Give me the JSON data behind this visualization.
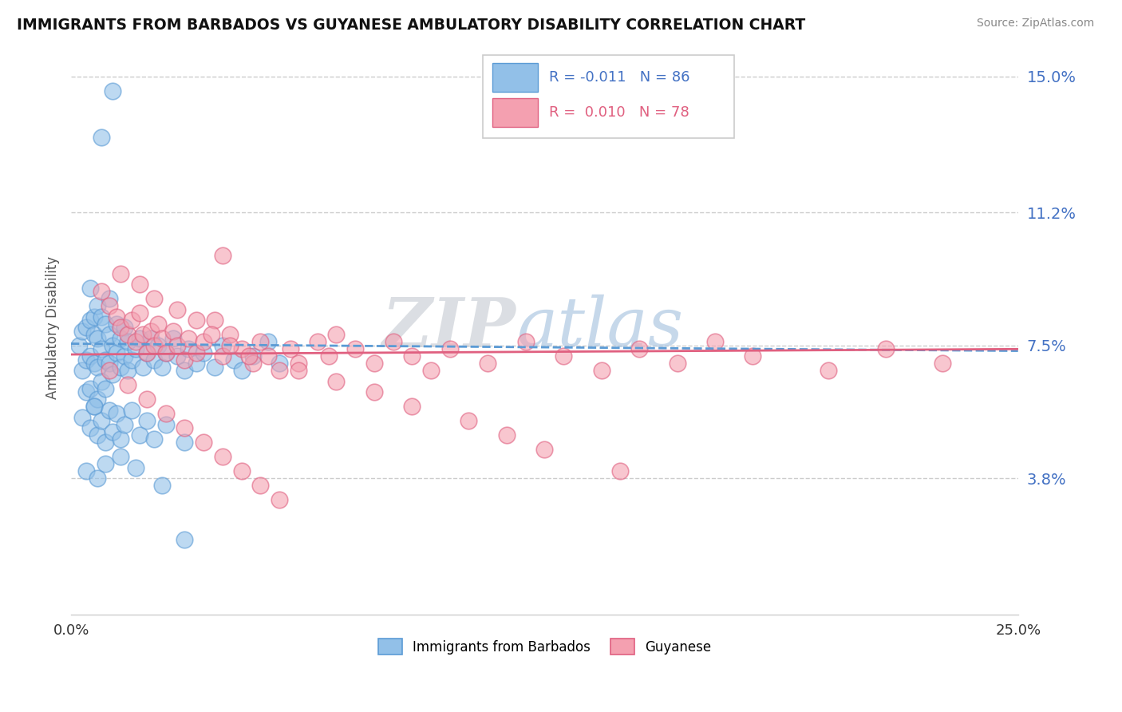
{
  "title": "IMMIGRANTS FROM BARBADOS VS GUYANESE AMBULATORY DISABILITY CORRELATION CHART",
  "source": "Source: ZipAtlas.com",
  "ylabel": "Ambulatory Disability",
  "xlim": [
    0.0,
    0.25
  ],
  "ylim": [
    0.0,
    0.16
  ],
  "yticks": [
    0.038,
    0.075,
    0.112,
    0.15
  ],
  "ytick_labels": [
    "3.8%",
    "7.5%",
    "11.2%",
    "15.0%"
  ],
  "xticks": [
    0.0,
    0.25
  ],
  "xtick_labels": [
    "0.0%",
    "25.0%"
  ],
  "blue_color": "#92c0e8",
  "pink_color": "#f4a0b0",
  "blue_line_color": "#5b9bd5",
  "pink_line_color": "#e06080",
  "grid_color": "#cccccc",
  "watermark": "ZIPAtlas",
  "watermark_color": "#c8d4e8",
  "blue_x": [
    0.002,
    0.003,
    0.003,
    0.004,
    0.004,
    0.004,
    0.005,
    0.005,
    0.005,
    0.005,
    0.006,
    0.006,
    0.006,
    0.006,
    0.007,
    0.007,
    0.007,
    0.007,
    0.008,
    0.008,
    0.008,
    0.009,
    0.009,
    0.009,
    0.01,
    0.01,
    0.01,
    0.011,
    0.011,
    0.012,
    0.012,
    0.013,
    0.013,
    0.014,
    0.014,
    0.015,
    0.015,
    0.016,
    0.017,
    0.018,
    0.019,
    0.02,
    0.021,
    0.022,
    0.023,
    0.024,
    0.025,
    0.027,
    0.028,
    0.03,
    0.031,
    0.033,
    0.035,
    0.038,
    0.04,
    0.043,
    0.045,
    0.048,
    0.052,
    0.055,
    0.003,
    0.005,
    0.006,
    0.007,
    0.008,
    0.009,
    0.01,
    0.011,
    0.012,
    0.013,
    0.014,
    0.016,
    0.018,
    0.02,
    0.022,
    0.025,
    0.03,
    0.004,
    0.007,
    0.009,
    0.013,
    0.017,
    0.024,
    0.011,
    0.008,
    0.03
  ],
  "blue_y": [
    0.075,
    0.068,
    0.079,
    0.071,
    0.08,
    0.062,
    0.072,
    0.082,
    0.063,
    0.091,
    0.07,
    0.078,
    0.058,
    0.083,
    0.069,
    0.077,
    0.06,
    0.086,
    0.074,
    0.065,
    0.083,
    0.071,
    0.081,
    0.063,
    0.07,
    0.078,
    0.088,
    0.075,
    0.067,
    0.073,
    0.081,
    0.069,
    0.077,
    0.072,
    0.08,
    0.068,
    0.076,
    0.071,
    0.074,
    0.077,
    0.069,
    0.073,
    0.077,
    0.071,
    0.075,
    0.069,
    0.073,
    0.077,
    0.072,
    0.068,
    0.074,
    0.07,
    0.073,
    0.069,
    0.075,
    0.071,
    0.068,
    0.072,
    0.076,
    0.07,
    0.055,
    0.052,
    0.058,
    0.05,
    0.054,
    0.048,
    0.057,
    0.051,
    0.056,
    0.049,
    0.053,
    0.057,
    0.05,
    0.054,
    0.049,
    0.053,
    0.048,
    0.04,
    0.038,
    0.042,
    0.044,
    0.041,
    0.036,
    0.146,
    0.133,
    0.021
  ],
  "pink_x": [
    0.008,
    0.01,
    0.012,
    0.013,
    0.015,
    0.016,
    0.017,
    0.018,
    0.019,
    0.02,
    0.021,
    0.022,
    0.023,
    0.024,
    0.025,
    0.027,
    0.028,
    0.03,
    0.031,
    0.033,
    0.035,
    0.038,
    0.04,
    0.042,
    0.045,
    0.048,
    0.05,
    0.052,
    0.055,
    0.058,
    0.06,
    0.065,
    0.068,
    0.07,
    0.075,
    0.08,
    0.085,
    0.09,
    0.095,
    0.1,
    0.11,
    0.12,
    0.13,
    0.14,
    0.15,
    0.16,
    0.17,
    0.18,
    0.2,
    0.215,
    0.01,
    0.015,
    0.02,
    0.025,
    0.03,
    0.035,
    0.04,
    0.045,
    0.05,
    0.055,
    0.013,
    0.018,
    0.022,
    0.028,
    0.033,
    0.037,
    0.042,
    0.047,
    0.06,
    0.07,
    0.08,
    0.09,
    0.105,
    0.115,
    0.125,
    0.145,
    0.23,
    0.04
  ],
  "pink_y": [
    0.09,
    0.086,
    0.083,
    0.08,
    0.078,
    0.082,
    0.076,
    0.084,
    0.078,
    0.073,
    0.079,
    0.075,
    0.081,
    0.077,
    0.073,
    0.079,
    0.075,
    0.071,
    0.077,
    0.073,
    0.076,
    0.082,
    0.072,
    0.078,
    0.074,
    0.07,
    0.076,
    0.072,
    0.068,
    0.074,
    0.07,
    0.076,
    0.072,
    0.078,
    0.074,
    0.07,
    0.076,
    0.072,
    0.068,
    0.074,
    0.07,
    0.076,
    0.072,
    0.068,
    0.074,
    0.07,
    0.076,
    0.072,
    0.068,
    0.074,
    0.068,
    0.064,
    0.06,
    0.056,
    0.052,
    0.048,
    0.044,
    0.04,
    0.036,
    0.032,
    0.095,
    0.092,
    0.088,
    0.085,
    0.082,
    0.078,
    0.075,
    0.072,
    0.068,
    0.065,
    0.062,
    0.058,
    0.054,
    0.05,
    0.046,
    0.04,
    0.07,
    0.1
  ]
}
